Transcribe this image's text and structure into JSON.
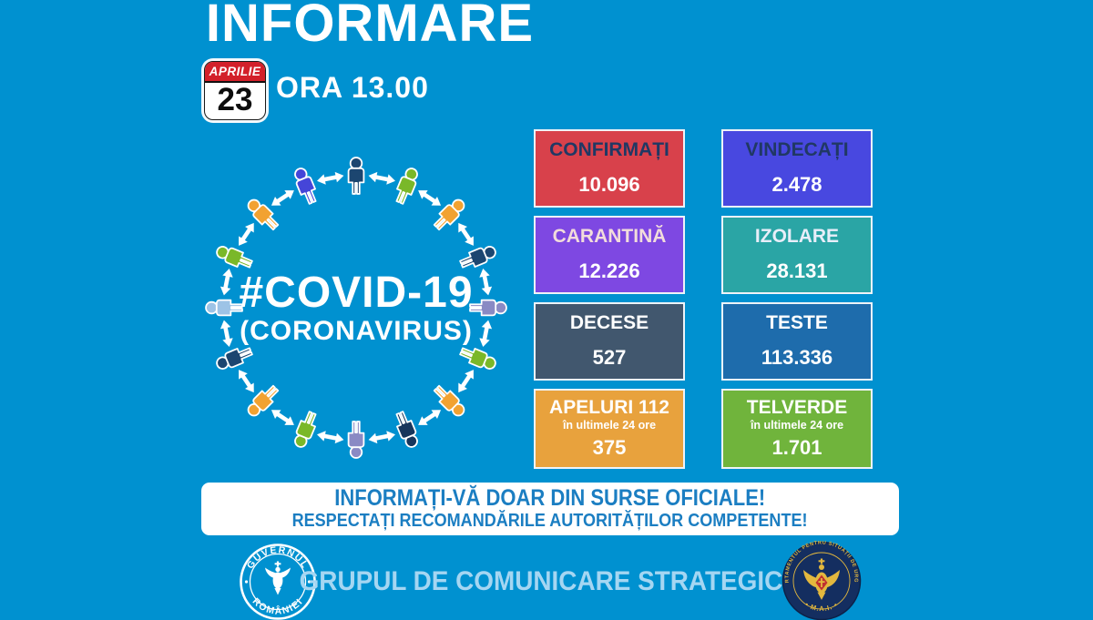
{
  "background_color": "#0091d0",
  "header": {
    "title": "INFORMARE",
    "calendar": {
      "month": "APRILIE",
      "day": "23",
      "month_bg": "#d3202a"
    },
    "time_label": "ORA 13.00"
  },
  "ring": {
    "center_line1": "#COVID-19",
    "center_line2": "(CORONAVIRUS)",
    "arrow_color": "#ffffff",
    "person_colors": [
      "#1c4670",
      "#7ab829",
      "#f2a231",
      "#1c4670",
      "#8a8ac4",
      "#7ab829",
      "#f2a231",
      "#17365c",
      "#8a8ac4",
      "#7ab829",
      "#f2a231",
      "#1c4670",
      "#9dc3e6",
      "#7ab829",
      "#f2a231",
      "#4545d8"
    ]
  },
  "stats": {
    "cards": [
      {
        "label": "CONFIRMAȚI",
        "value": "10.096",
        "bg": "#d8414b",
        "label_color": "#203864"
      },
      {
        "label": "VINDECAȚI",
        "value": "2.478",
        "bg": "#4848e0",
        "label_color": "#203864"
      },
      {
        "label": "CARANTINĂ",
        "value": "12.226",
        "bg": "#7e48e2",
        "label_color": "#f2dcdb"
      },
      {
        "label": "IZOLARE",
        "value": "28.131",
        "bg": "#2aa5a5",
        "label_color": "#e8eef9"
      },
      {
        "label": "DECESE",
        "value": "527",
        "bg": "#41576e",
        "label_color": "#ffffff"
      },
      {
        "label": "TESTE",
        "value": "113.336",
        "bg": "#1e6cac",
        "label_color": "#ffffff"
      },
      {
        "label": "APELURI 112",
        "sublabel": "în ultimele 24 ore",
        "value": "375",
        "bg": "#e8a23d",
        "label_color": "#ffffff"
      },
      {
        "label": "TELVERDE",
        "sublabel": "în ultimele 24 ore",
        "value": "1.701",
        "bg": "#70b43c",
        "label_color": "#ffffff"
      }
    ]
  },
  "banner": {
    "line1": "INFORMAȚI-VĂ DOAR DIN SURSE OFICIALE!",
    "line2": "RESPECTAȚI RECOMANDĂRILE AUTORITĂȚILOR COMPETENTE!",
    "text_color": "#1b7ec2"
  },
  "footer": {
    "title": "GRUPUL DE COMUNICARE STRATEGICĂ",
    "title_color": "#a5d6f2",
    "left_seal": {
      "top_text": "GUVERNUL",
      "bottom_text": "ROMÂNIEI",
      "color": "#ffffff"
    },
    "right_seal": {
      "top_text": "DEPARTAMENTUL PENTRU SITUAȚII DE URGENȚĂ",
      "bottom_text": "• M.A.I. •",
      "disc_color": "#142e60",
      "gold": "#e3b83e",
      "shield_red": "#c03030"
    }
  }
}
